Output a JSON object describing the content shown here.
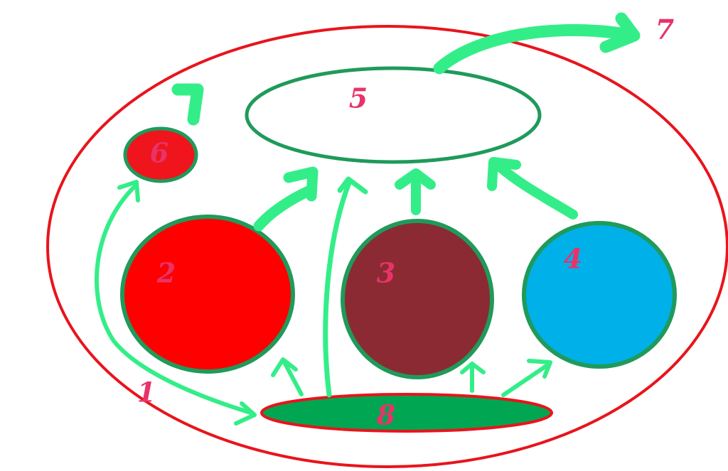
{
  "labels": {
    "l1": "1",
    "l2": "2",
    "l3": "3",
    "l4": "4",
    "l5": "5",
    "l6": "6",
    "l7": "7",
    "l8": "8"
  },
  "colors": {
    "outer_border": "#e8141c",
    "circle2_fill": "#ff0000",
    "circle3_fill": "#8b2a32",
    "circle4_fill": "#00b0e8",
    "circle6_fill": "#f0141c",
    "ellipse8_fill": "#00a651",
    "node_border": "#1f9a5a",
    "arrow_color": "#33ee88",
    "label_color": "#e8336a"
  }
}
